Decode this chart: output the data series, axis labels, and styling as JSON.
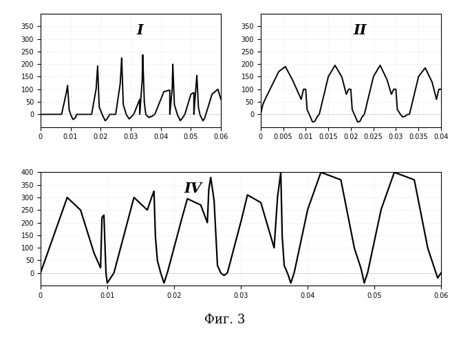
{
  "fig_title": "Фиг. 3",
  "subplot_I": {
    "label": "I",
    "ylim": [
      -50,
      400
    ],
    "xlim": [
      0,
      0.06
    ],
    "yticks": [
      0,
      50,
      100,
      150,
      200,
      250,
      300,
      350
    ],
    "xticks": [
      0,
      0.01,
      0.02,
      0.03,
      0.04,
      0.05,
      0.06
    ]
  },
  "subplot_II": {
    "label": "II",
    "ylim": [
      -50,
      400
    ],
    "xlim": [
      0,
      0.04
    ],
    "yticks": [
      0,
      50,
      100,
      150,
      200,
      250,
      300,
      350
    ],
    "xticks": [
      0,
      0.005,
      0.01,
      0.015,
      0.02,
      0.025,
      0.03,
      0.035,
      0.04
    ]
  },
  "subplot_IV": {
    "label": "IV",
    "ylim": [
      -50,
      400
    ],
    "xlim": [
      0,
      0.06
    ],
    "yticks": [
      0,
      50,
      100,
      150,
      200,
      250,
      300,
      350,
      400
    ],
    "xticks": [
      0,
      0.01,
      0.02,
      0.03,
      0.04,
      0.05,
      0.06
    ]
  }
}
